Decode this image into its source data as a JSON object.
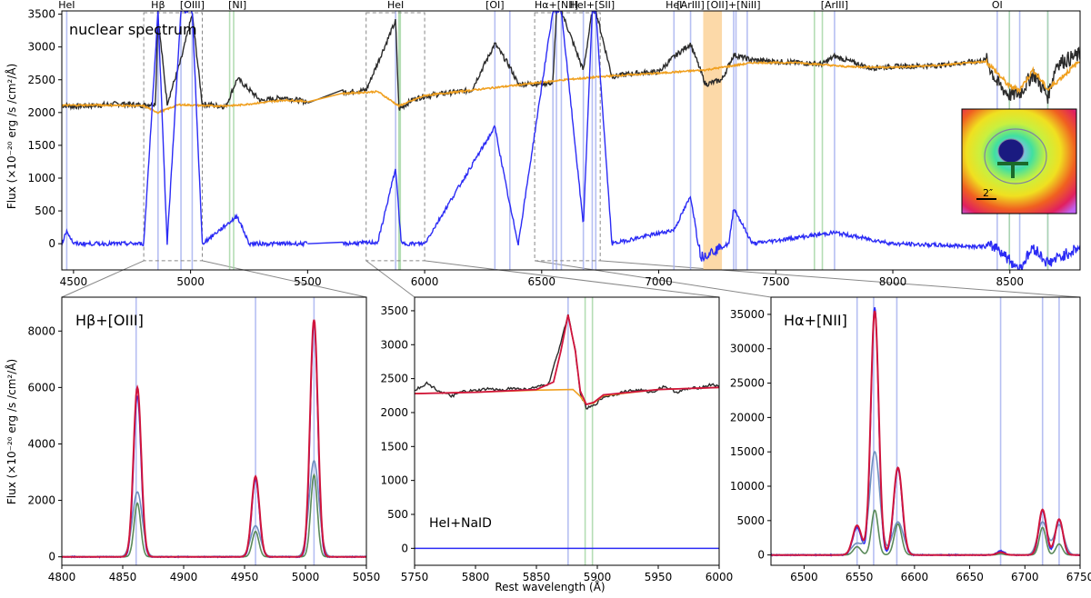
{
  "colors": {
    "observed": "#2b2b2b",
    "continuum": "#f0a020",
    "residual": "#2b2bf5",
    "fit": "#d0143c",
    "component": "#5a8a5a",
    "line_marker_blue": "#aab4f0",
    "line_marker_green": "#a8d8a8",
    "mask_band": "#fcd9a8",
    "zoom_box": "#888888"
  },
  "chart_data": [
    {
      "id": "top",
      "type": "line",
      "title": "nuclear spectrum",
      "xlabel": "",
      "ylabel": "Flux (×10⁻²⁰ erg /s /cm²/Å)",
      "xlim": [
        4450,
        8800
      ],
      "ylim": [
        -400,
        3550
      ],
      "xticks": [
        4500,
        5000,
        5500,
        6000,
        6500,
        7000,
        7500,
        8000,
        8500
      ],
      "yticks": [
        0,
        500,
        1000,
        1500,
        2000,
        2500,
        3000,
        3500
      ],
      "gap": [
        5500,
        5650
      ],
      "line_labels": [
        {
          "text": "HeI",
          "x": 4471
        },
        {
          "text": "Hβ",
          "x": 4861
        },
        {
          "text": "[OIII]",
          "x": 5007
        },
        {
          "text": "[NI]",
          "x": 5200
        },
        {
          "text": "HeI",
          "x": 5876
        },
        {
          "text": "[OI]",
          "x": 6300
        },
        {
          "text": "Hα+[NII]",
          "x": 6563
        },
        {
          "text": "HeI+[SII]",
          "x": 6716
        },
        {
          "text": "HeI",
          "x": 7065
        },
        {
          "text": "[ArIII]",
          "x": 7136
        },
        {
          "text": "[OII]+[NiII]",
          "x": 7320
        },
        {
          "text": "[ArIII]",
          "x": 7751
        },
        {
          "text": "OI",
          "x": 8446
        }
      ],
      "blue_lines": [
        4471,
        4861,
        4959,
        5007,
        5876,
        6300,
        6364,
        6548,
        6563,
        6584,
        6678,
        6716,
        6731,
        7065,
        7136,
        7320,
        7330,
        7378,
        7751,
        8446,
        8498,
        8542,
        8662
      ],
      "green_lines": [
        5167,
        5184,
        5890,
        5896,
        7665,
        7699,
        8498,
        8662
      ],
      "mask_band": [
        7190,
        7270
      ],
      "zoom_windows": [
        [
          4800,
          5050
        ],
        [
          5750,
          6000
        ],
        [
          6470,
          6750
        ]
      ],
      "observed": [
        [
          4450,
          2110
        ],
        [
          4500,
          2095
        ],
        [
          4600,
          2110
        ],
        [
          4700,
          2135
        ],
        [
          4800,
          2110
        ],
        [
          4850,
          2140
        ],
        [
          4861,
          3450
        ],
        [
          4900,
          2140
        ],
        [
          4959,
          2800
        ],
        [
          5007,
          3500
        ],
        [
          5050,
          2130
        ],
        [
          5100,
          2110
        ],
        [
          5150,
          2090
        ],
        [
          5200,
          2520
        ],
        [
          5300,
          2180
        ],
        [
          5400,
          2230
        ],
        [
          5500,
          2160
        ],
        [
          5650,
          2310
        ],
        [
          5750,
          2340
        ],
        [
          5876,
          3400
        ],
        [
          5890,
          2050
        ],
        [
          5950,
          2200
        ],
        [
          6000,
          2250
        ],
        [
          6100,
          2300
        ],
        [
          6200,
          2340
        ],
        [
          6300,
          3050
        ],
        [
          6364,
          2700
        ],
        [
          6400,
          2430
        ],
        [
          6548,
          2450
        ],
        [
          6563,
          3550
        ],
        [
          6584,
          3550
        ],
        [
          6678,
          2640
        ],
        [
          6716,
          3550
        ],
        [
          6731,
          3550
        ],
        [
          6800,
          2550
        ],
        [
          6900,
          2600
        ],
        [
          7000,
          2620
        ],
        [
          7065,
          2850
        ],
        [
          7136,
          3050
        ],
        [
          7200,
          2430
        ],
        [
          7270,
          2500
        ],
        [
          7320,
          2880
        ],
        [
          7400,
          2800
        ],
        [
          7500,
          2780
        ],
        [
          7600,
          2760
        ],
        [
          7700,
          2740
        ],
        [
          7751,
          2860
        ],
        [
          7900,
          2680
        ],
        [
          8000,
          2700
        ],
        [
          8200,
          2720
        ],
        [
          8400,
          2800
        ],
        [
          8446,
          2450
        ],
        [
          8498,
          2270
        ],
        [
          8542,
          2290
        ],
        [
          8600,
          2600
        ],
        [
          8662,
          2250
        ],
        [
          8700,
          2750
        ],
        [
          8800,
          2880
        ]
      ],
      "continuum": [
        [
          4450,
          2110
        ],
        [
          4600,
          2115
        ],
        [
          4800,
          2100
        ],
        [
          4861,
          2000
        ],
        [
          4950,
          2120
        ],
        [
          5100,
          2100
        ],
        [
          5200,
          2110
        ],
        [
          5400,
          2190
        ],
        [
          5500,
          2170
        ],
        [
          5650,
          2290
        ],
        [
          5800,
          2320
        ],
        [
          5890,
          2100
        ],
        [
          6000,
          2260
        ],
        [
          6200,
          2340
        ],
        [
          6400,
          2420
        ],
        [
          6600,
          2500
        ],
        [
          6800,
          2560
        ],
        [
          7000,
          2600
        ],
        [
          7200,
          2650
        ],
        [
          7400,
          2760
        ],
        [
          7600,
          2760
        ],
        [
          7800,
          2700
        ],
        [
          8000,
          2690
        ],
        [
          8200,
          2720
        ],
        [
          8400,
          2780
        ],
        [
          8498,
          2400
        ],
        [
          8542,
          2350
        ],
        [
          8600,
          2650
        ],
        [
          8662,
          2350
        ],
        [
          8800,
          2790
        ]
      ],
      "residual": [
        [
          4450,
          0
        ],
        [
          4471,
          200
        ],
        [
          4500,
          0
        ],
        [
          4800,
          0
        ],
        [
          4861,
          3550
        ],
        [
          4900,
          0
        ],
        [
          4959,
          3550
        ],
        [
          5007,
          3550
        ],
        [
          5050,
          0
        ],
        [
          5200,
          420
        ],
        [
          5250,
          0
        ],
        [
          5500,
          0
        ],
        [
          5650,
          0
        ],
        [
          5800,
          20
        ],
        [
          5876,
          1150
        ],
        [
          5900,
          0
        ],
        [
          6000,
          0
        ],
        [
          6300,
          1780
        ],
        [
          6364,
          580
        ],
        [
          6400,
          0
        ],
        [
          6548,
          3550
        ],
        [
          6563,
          3550
        ],
        [
          6584,
          3550
        ],
        [
          6678,
          280
        ],
        [
          6716,
          3550
        ],
        [
          6731,
          3550
        ],
        [
          6800,
          0
        ],
        [
          7065,
          210
        ],
        [
          7136,
          720
        ],
        [
          7180,
          -200
        ],
        [
          7300,
          0
        ],
        [
          7320,
          550
        ],
        [
          7400,
          0
        ],
        [
          7751,
          170
        ],
        [
          8000,
          0
        ],
        [
          8446,
          -50
        ],
        [
          8498,
          -250
        ],
        [
          8542,
          -380
        ],
        [
          8600,
          -50
        ],
        [
          8662,
          -300
        ],
        [
          8800,
          -50
        ]
      ],
      "inset": {
        "scale_label": "2″"
      }
    },
    {
      "id": "hbeta",
      "type": "line",
      "title": "Hβ+[OIII]",
      "xlabel": "",
      "ylabel": "Flux (×10⁻²⁰ erg /s /cm²/Å)",
      "xlim": [
        4800,
        5050
      ],
      "ylim": [
        -300,
        9200
      ],
      "xticks": [
        4800,
        4850,
        4900,
        4950,
        5000,
        5050
      ],
      "yticks": [
        0,
        2000,
        4000,
        6000,
        8000
      ],
      "blue_lines": [
        4861,
        4959,
        5007
      ],
      "lines": [
        {
          "center": 4862,
          "fit": 6000,
          "data": 5700,
          "broad": 2300,
          "narrow": 1900,
          "sigma": 3.2
        },
        {
          "center": 4959,
          "fit": 2850,
          "data": 2750,
          "broad": 1100,
          "narrow": 900,
          "sigma": 3.2
        },
        {
          "center": 5007,
          "fit": 8400,
          "data": 8300,
          "broad": 3400,
          "narrow": 2900,
          "sigma": 3.2
        }
      ]
    },
    {
      "id": "hei",
      "type": "line",
      "title": "HeI+NaID",
      "xlabel": "Rest wavelength (Å)",
      "ylabel": "",
      "xlim": [
        5750,
        6000
      ],
      "ylim": [
        -250,
        3700
      ],
      "xticks": [
        5750,
        5800,
        5850,
        5900,
        5950,
        6000
      ],
      "yticks": [
        0,
        500,
        1000,
        1500,
        2000,
        2500,
        3000,
        3500
      ],
      "blue_lines": [
        5876
      ],
      "green_lines": [
        5890,
        5896
      ],
      "observed": [
        [
          5750,
          2330
        ],
        [
          5760,
          2430
        ],
        [
          5770,
          2320
        ],
        [
          5780,
          2240
        ],
        [
          5790,
          2310
        ],
        [
          5800,
          2320
        ],
        [
          5810,
          2350
        ],
        [
          5820,
          2330
        ],
        [
          5830,
          2360
        ],
        [
          5840,
          2340
        ],
        [
          5850,
          2370
        ],
        [
          5860,
          2420
        ],
        [
          5868,
          2900
        ],
        [
          5876,
          3450
        ],
        [
          5882,
          2900
        ],
        [
          5886,
          2280
        ],
        [
          5891,
          2060
        ],
        [
          5897,
          2100
        ],
        [
          5905,
          2230
        ],
        [
          5915,
          2270
        ],
        [
          5925,
          2320
        ],
        [
          5935,
          2330
        ],
        [
          5945,
          2300
        ],
        [
          5955,
          2390
        ],
        [
          5965,
          2300
        ],
        [
          5975,
          2350
        ],
        [
          5985,
          2370
        ],
        [
          5995,
          2420
        ],
        [
          6000,
          2370
        ]
      ],
      "continuum": [
        [
          5750,
          2280
        ],
        [
          5800,
          2300
        ],
        [
          5850,
          2330
        ],
        [
          5880,
          2340
        ],
        [
          5886,
          2240
        ],
        [
          5891,
          2120
        ],
        [
          5897,
          2140
        ],
        [
          5905,
          2250
        ],
        [
          5950,
          2340
        ],
        [
          6000,
          2370
        ]
      ],
      "fit": [
        [
          5750,
          2280
        ],
        [
          5800,
          2300
        ],
        [
          5850,
          2340
        ],
        [
          5864,
          2450
        ],
        [
          5870,
          2900
        ],
        [
          5876,
          3440
        ],
        [
          5882,
          2900
        ],
        [
          5886,
          2320
        ],
        [
          5891,
          2120
        ],
        [
          5897,
          2150
        ],
        [
          5905,
          2260
        ],
        [
          5950,
          2340
        ],
        [
          6000,
          2370
        ]
      ],
      "residual_level": 0
    },
    {
      "id": "halpha",
      "type": "line",
      "title": "Hα+[NII]",
      "xlabel": "",
      "ylabel": "",
      "xlim": [
        6470,
        6750
      ],
      "ylim": [
        -1500,
        37500
      ],
      "xticks": [
        6500,
        6550,
        6600,
        6650,
        6700,
        6750
      ],
      "yticks": [
        0,
        5000,
        10000,
        15000,
        20000,
        25000,
        30000,
        35000
      ],
      "blue_lines": [
        6548,
        6563,
        6584,
        6678,
        6716,
        6731
      ],
      "lines": [
        {
          "center": 6548,
          "fit": 4300,
          "data": 4000,
          "broad": 1700,
          "narrow": 1200,
          "sigma": 4.0
        },
        {
          "center": 6564,
          "fit": 35500,
          "data": 36000,
          "broad": 15000,
          "narrow": 6500,
          "sigma": 3.6
        },
        {
          "center": 6585,
          "fit": 12700,
          "data": 12500,
          "broad": 4800,
          "narrow": 4500,
          "sigma": 4.0
        },
        {
          "center": 6678,
          "fit": 400,
          "data": 600,
          "broad": 200,
          "narrow": 150,
          "sigma": 3.5
        },
        {
          "center": 6716,
          "fit": 6600,
          "data": 6400,
          "broad": 4800,
          "narrow": 4000,
          "sigma": 3.5
        },
        {
          "center": 6731,
          "fit": 5200,
          "data": 5100,
          "broad": 4400,
          "narrow": 1600,
          "sigma": 3.5
        }
      ]
    }
  ]
}
